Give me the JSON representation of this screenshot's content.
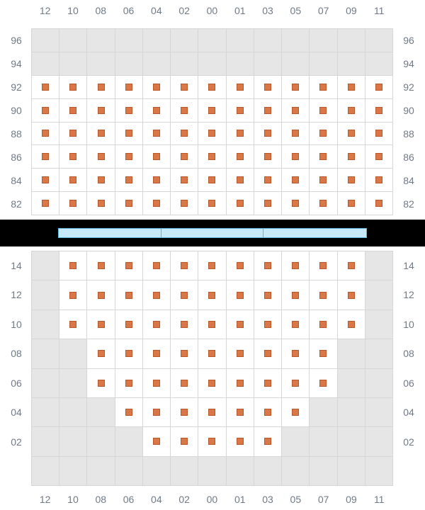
{
  "columns": [
    "12",
    "10",
    "08",
    "06",
    "04",
    "02",
    "00",
    "01",
    "03",
    "05",
    "07",
    "09",
    "11"
  ],
  "upper": {
    "rows": [
      "96",
      "94",
      "92",
      "90",
      "88",
      "86",
      "84",
      "82"
    ],
    "seats": [
      [
        0,
        0,
        0,
        0,
        0,
        0,
        0,
        0,
        0,
        0,
        0,
        0,
        0
      ],
      [
        0,
        0,
        0,
        0,
        0,
        0,
        0,
        0,
        0,
        0,
        0,
        0,
        0
      ],
      [
        1,
        1,
        1,
        1,
        1,
        1,
        1,
        1,
        1,
        1,
        1,
        1,
        1
      ],
      [
        1,
        1,
        1,
        1,
        1,
        1,
        1,
        1,
        1,
        1,
        1,
        1,
        1
      ],
      [
        1,
        1,
        1,
        1,
        1,
        1,
        1,
        1,
        1,
        1,
        1,
        1,
        1
      ],
      [
        1,
        1,
        1,
        1,
        1,
        1,
        1,
        1,
        1,
        1,
        1,
        1,
        1
      ],
      [
        1,
        1,
        1,
        1,
        1,
        1,
        1,
        1,
        1,
        1,
        1,
        1,
        1
      ],
      [
        1,
        1,
        1,
        1,
        1,
        1,
        1,
        1,
        1,
        1,
        1,
        1,
        1
      ]
    ]
  },
  "lower": {
    "rows": [
      "14",
      "12",
      "10",
      "08",
      "06",
      "04",
      "02",
      ""
    ],
    "seats": [
      [
        0,
        1,
        1,
        1,
        1,
        1,
        1,
        1,
        1,
        1,
        1,
        1,
        0
      ],
      [
        0,
        1,
        1,
        1,
        1,
        1,
        1,
        1,
        1,
        1,
        1,
        1,
        0
      ],
      [
        0,
        1,
        1,
        1,
        1,
        1,
        1,
        1,
        1,
        1,
        1,
        1,
        0
      ],
      [
        0,
        0,
        1,
        1,
        1,
        1,
        1,
        1,
        1,
        1,
        1,
        0,
        0
      ],
      [
        0,
        0,
        1,
        1,
        1,
        1,
        1,
        1,
        1,
        1,
        1,
        0,
        0
      ],
      [
        0,
        0,
        0,
        1,
        1,
        1,
        1,
        1,
        1,
        1,
        0,
        0,
        0
      ],
      [
        0,
        0,
        0,
        0,
        1,
        1,
        1,
        1,
        1,
        0,
        0,
        0,
        0
      ],
      [
        0,
        0,
        0,
        0,
        0,
        0,
        0,
        0,
        0,
        0,
        0,
        0,
        0
      ]
    ]
  },
  "style": {
    "seat_color": "#d97846",
    "seat_border": "#b8572c",
    "seat_bg": "#ffffff",
    "empty_bg": "#e6e6e6",
    "grid_line": "#d6d6d6",
    "label_color": "#6f7a86",
    "divider_bg": "#000000",
    "stage_fill": "#c7e8f7",
    "stage_border": "#5bb6e2",
    "stage_segments": 3
  }
}
